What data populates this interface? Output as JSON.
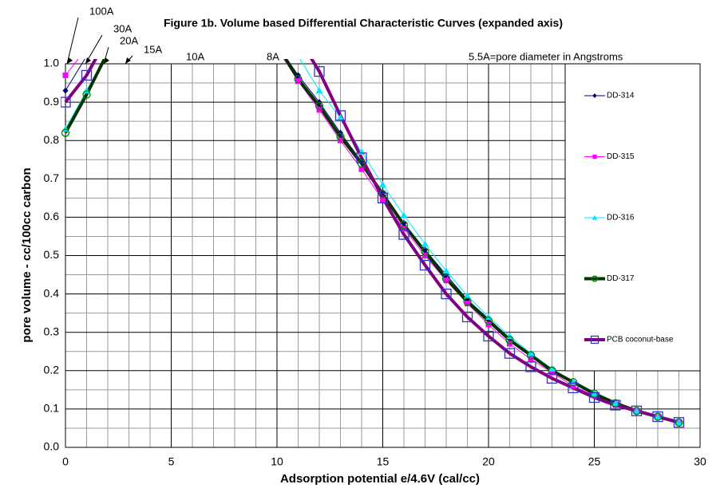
{
  "chart_data": {
    "type": "line",
    "title": "Figure 1b. Volume based Differential Characteristic Curves (expanded axis)",
    "x_label": "Adsorption potential e/4.6V (cal/cc)",
    "y_label": "pore volume - cc/100cc carbon",
    "annotations": [
      "100A",
      "30A",
      "20A",
      "15A",
      "10A",
      "8A",
      "5.5A=pore diameter in Angstroms"
    ],
    "x": [
      0,
      1,
      2,
      3,
      4,
      5,
      6,
      7,
      8,
      9,
      10,
      11,
      12,
      13,
      14,
      15,
      16,
      17,
      18,
      19,
      20,
      21,
      22,
      23,
      24,
      25,
      26,
      27,
      28,
      29
    ],
    "xlim": [
      0,
      30
    ],
    "xticks": [
      0,
      5,
      10,
      15,
      20,
      25,
      30
    ],
    "minor_xticks": [
      1,
      2,
      3,
      4,
      6,
      7,
      8,
      9,
      11,
      12,
      13,
      14,
      16,
      17,
      18,
      19,
      21,
      22,
      23,
      24,
      26,
      27,
      28,
      29
    ],
    "ylim": [
      0,
      1
    ],
    "yticks": [
      {
        "value": 0,
        "label": "0.0"
      },
      0.1,
      0.2,
      0.3,
      0.4,
      0.5,
      0.6,
      0.7,
      0.8,
      0.9,
      {
        "value": 1,
        "label": "1.0"
      }
    ],
    "minor_yticks": [
      0.05,
      0.15,
      0.25,
      0.35,
      0.45,
      0.55,
      0.65,
      0.75,
      0.85,
      0.95
    ],
    "grid": true,
    "legend": "right",
    "series": [
      {
        "name": "DD-314",
        "color": "#000080",
        "marker": "diamond",
        "line_width": 1,
        "values": [
          0.93,
          1.02,
          null,
          null,
          null,
          null,
          null,
          null,
          null,
          null,
          1.05,
          0.97,
          0.9,
          0.82,
          0.745,
          0.665,
          0.585,
          0.515,
          0.45,
          0.385,
          0.335,
          0.285,
          0.24,
          0.205,
          0.17,
          0.14,
          0.115,
          0.095,
          0.08,
          0.065
        ]
      },
      {
        "name": "DD-315",
        "color": "#ff00ff",
        "marker": "square",
        "line_width": 1,
        "values": [
          0.97,
          1.04,
          null,
          null,
          null,
          null,
          null,
          null,
          null,
          null,
          1.04,
          0.955,
          0.88,
          0.8,
          0.725,
          0.645,
          0.57,
          0.5,
          0.435,
          0.375,
          0.32,
          0.27,
          0.23,
          0.195,
          0.16,
          0.135,
          0.11,
          0.095,
          0.08,
          0.065
        ]
      },
      {
        "name": "DD-316",
        "color": "#00e5ff",
        "marker": "triangle",
        "line_width": 1,
        "values": [
          0.83,
          0.93,
          1.03,
          null,
          null,
          null,
          null,
          null,
          null,
          null,
          null,
          1.02,
          0.93,
          0.86,
          0.77,
          0.685,
          0.605,
          0.53,
          0.46,
          0.395,
          0.34,
          0.29,
          0.245,
          0.205,
          0.17,
          0.14,
          0.115,
          0.095,
          0.08,
          0.065
        ]
      },
      {
        "name": "DD-317",
        "color": "#003300",
        "marker": "circle",
        "line_width": 4,
        "values": [
          0.82,
          0.92,
          1.03,
          null,
          null,
          null,
          null,
          null,
          null,
          null,
          1.05,
          0.96,
          0.89,
          0.81,
          0.74,
          0.66,
          0.58,
          0.51,
          0.44,
          0.38,
          0.33,
          0.28,
          0.24,
          0.2,
          0.17,
          0.14,
          0.115,
          0.095,
          0.08,
          0.065
        ]
      },
      {
        "name": "PCB coconut-base",
        "color": "#800080",
        "marker": "open-square",
        "marker_color": "#3333cc",
        "line_width": 4,
        "values": [
          0.9,
          0.97,
          1.07,
          null,
          null,
          null,
          null,
          null,
          null,
          null,
          null,
          1.07,
          0.98,
          0.865,
          0.755,
          0.65,
          0.555,
          0.475,
          0.4,
          0.34,
          0.29,
          0.245,
          0.21,
          0.18,
          0.155,
          0.13,
          0.11,
          0.095,
          0.08,
          0.065
        ]
      }
    ]
  }
}
